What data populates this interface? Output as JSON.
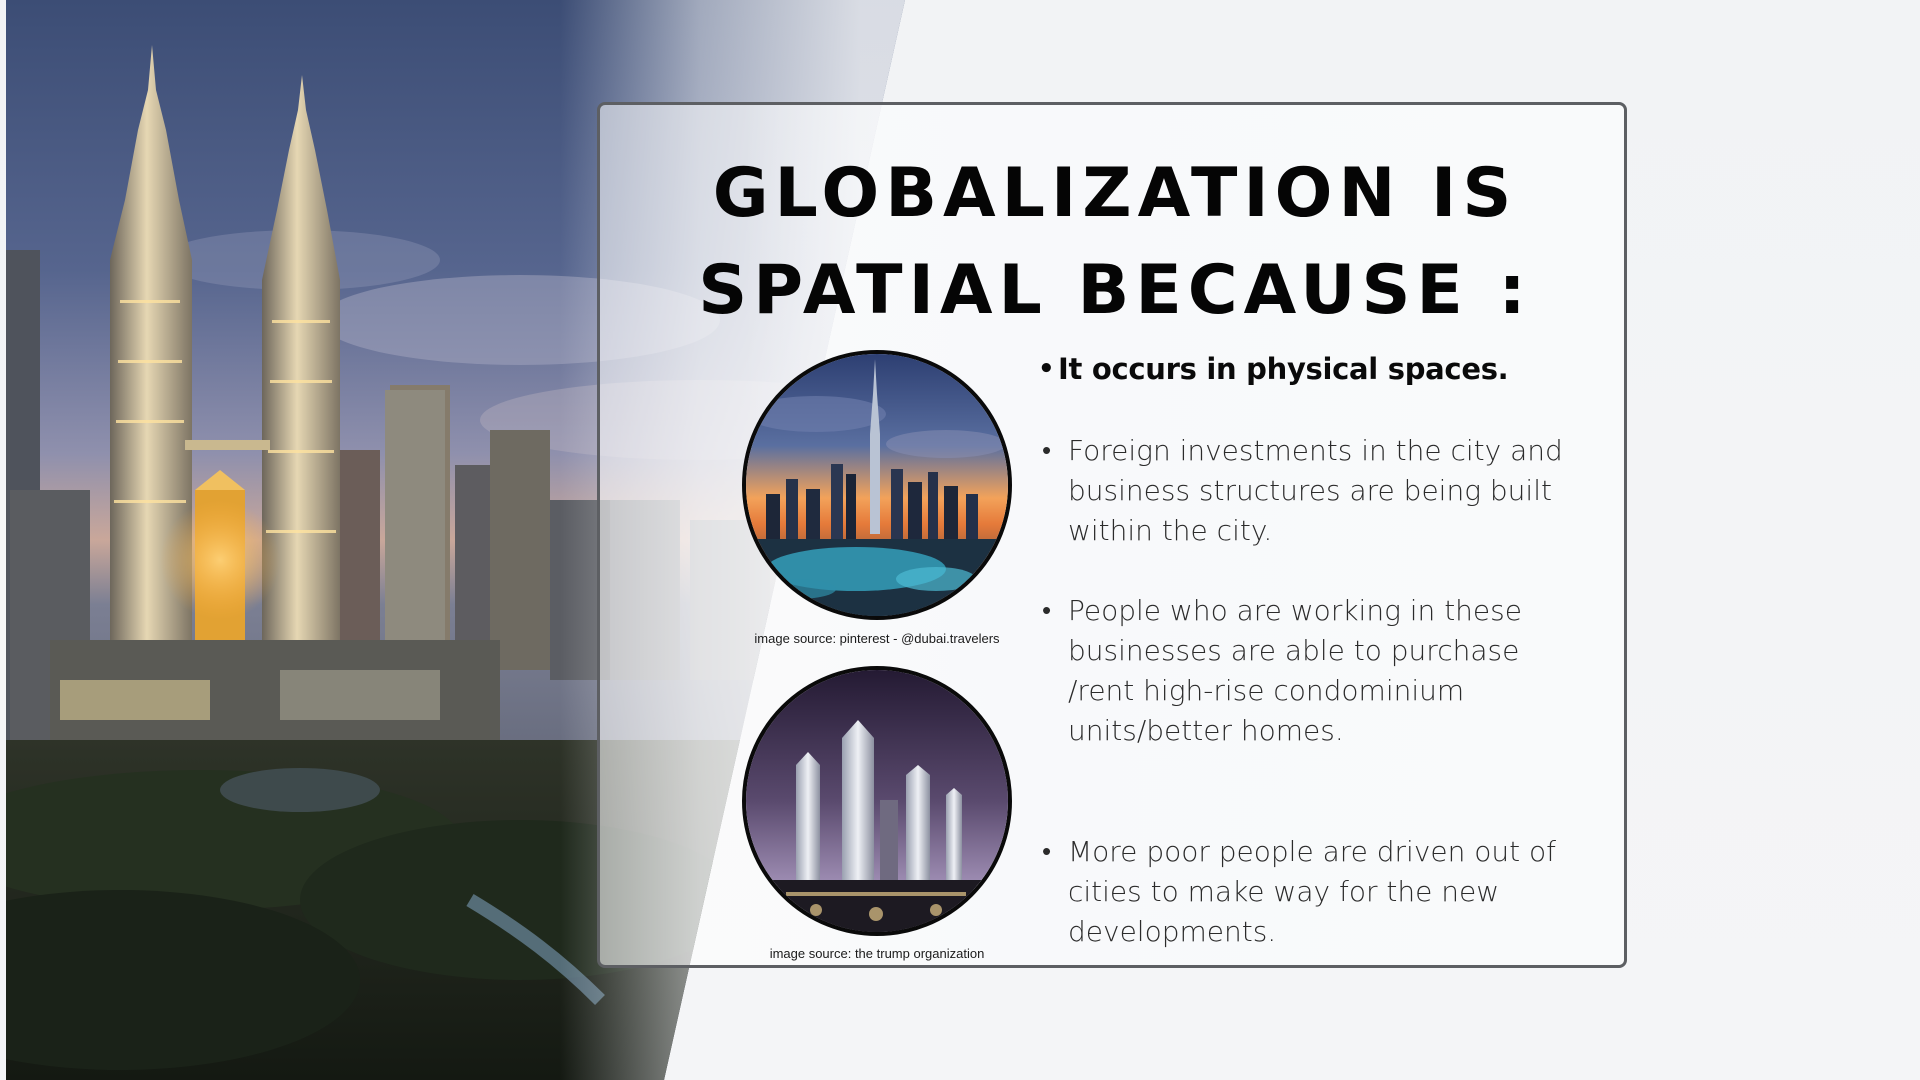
{
  "slide": {
    "title_line1": "GLOBALIZATION IS",
    "title_line2": "SPATIAL BECAUSE :",
    "bullet_lead": "It occurs in physical spaces.",
    "bullets": [
      "Foreign investments in the city and business structures are being built within the city.",
      "People who are working in these businesses are able to purchase /rent high-rise condominium units/better homes.",
      "More poor people are driven out of cities to make way for the new developments."
    ],
    "bullet_symbol": "•",
    "caption_1": "image source:  pinterest  - @dubai.travelers",
    "caption_2": "image source:  the trump organization"
  },
  "colors": {
    "background": "#f4f5f7",
    "card_border": "#5d5f63",
    "title": "#050505",
    "body_text": "#2b2b2b"
  },
  "images": {
    "background_photo": "city-skyline-twin-towers-dusk",
    "circle_1": "dubai-skyline-sunset",
    "circle_2": "high-rise-condominium-towers-night"
  }
}
